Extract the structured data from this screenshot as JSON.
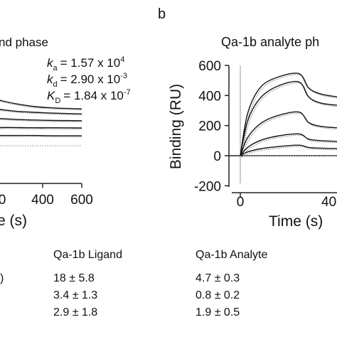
{
  "panel_b_label": "b",
  "chart_data": [
    {
      "type": "line",
      "panel": "a",
      "title": "nd phase",
      "xlabel": "e (s)",
      "ylabel": "",
      "x_ticks": [
        400,
        600
      ],
      "x_tick_partial": "0",
      "xlim": [
        0,
        600
      ],
      "rate_constants": [
        {
          "symbol": "k",
          "sub": "a",
          "value": "= 1.57 x 10",
          "exp": "4"
        },
        {
          "symbol": "k",
          "sub": "d",
          "value": "= 2.90 x 10",
          "exp": "-3"
        },
        {
          "symbol": "K",
          "sub": "D",
          "value": "= 1.84 x 10",
          "exp": "-7"
        }
      ],
      "series": [
        {
          "values": [
            [
              -20,
              200
            ],
            [
              100,
              185
            ],
            [
              250,
              172
            ],
            [
              400,
              166
            ],
            [
              600,
              162
            ]
          ]
        },
        {
          "values": [
            [
              -20,
              160
            ],
            [
              100,
              152
            ],
            [
              250,
              147
            ],
            [
              400,
              143
            ],
            [
              600,
              140
            ]
          ]
        },
        {
          "values": [
            [
              -20,
              120
            ],
            [
              100,
              116
            ],
            [
              250,
              113
            ],
            [
              400,
              111
            ],
            [
              600,
              110
            ]
          ]
        },
        {
          "values": [
            [
              -20,
              80
            ],
            [
              100,
              80
            ],
            [
              250,
              79
            ],
            [
              400,
              79
            ],
            [
              600,
              78
            ]
          ]
        },
        {
          "values": [
            [
              -20,
              45
            ],
            [
              100,
              45
            ],
            [
              250,
              45
            ],
            [
              400,
              44
            ],
            [
              600,
              44
            ]
          ]
        }
      ],
      "baseline": 0
    },
    {
      "type": "line",
      "panel": "b",
      "title": "Qa-1b analyte ph",
      "xlabel": "Time (s)",
      "ylabel": "Binding (RU)",
      "y_ticks": [
        600,
        400,
        200,
        0,
        -200
      ],
      "x_ticks": [
        "0",
        "40"
      ],
      "ylim": [
        -200,
        600
      ],
      "xlim": [
        -30,
        430
      ],
      "series": [
        {
          "values": [
            [
              0,
              0
            ],
            [
              30,
              280
            ],
            [
              80,
              450
            ],
            [
              150,
              520
            ],
            [
              240,
              545
            ],
            [
              280,
              450
            ],
            [
              330,
              410
            ],
            [
              400,
              390
            ],
            [
              430,
              385
            ]
          ]
        },
        {
          "values": [
            [
              0,
              0
            ],
            [
              30,
              230
            ],
            [
              80,
              380
            ],
            [
              150,
              460
            ],
            [
              240,
              490
            ],
            [
              280,
              390
            ],
            [
              330,
              350
            ],
            [
              400,
              335
            ],
            [
              430,
              330
            ]
          ]
        },
        {
          "values": [
            [
              0,
              0
            ],
            [
              30,
              120
            ],
            [
              80,
              210
            ],
            [
              150,
              265
            ],
            [
              240,
              290
            ],
            [
              280,
              220
            ],
            [
              330,
              195
            ],
            [
              400,
              185
            ],
            [
              430,
              182
            ]
          ]
        },
        {
          "values": [
            [
              0,
              0
            ],
            [
              30,
              55
            ],
            [
              80,
              100
            ],
            [
              150,
              130
            ],
            [
              240,
              145
            ],
            [
              280,
              110
            ],
            [
              330,
              100
            ],
            [
              400,
              95
            ],
            [
              430,
              93
            ]
          ]
        },
        {
          "values": [
            [
              0,
              0
            ],
            [
              30,
              25
            ],
            [
              80,
              45
            ],
            [
              150,
              60
            ],
            [
              240,
              70
            ],
            [
              280,
              55
            ],
            [
              330,
              50
            ],
            [
              400,
              48
            ],
            [
              430,
              47
            ]
          ]
        }
      ],
      "baseline": 0
    }
  ],
  "table": {
    "headers": [
      "Qa-1b Ligand",
      "Qa-1b Analyte"
    ],
    "row_stub": ")",
    "rows": [
      [
        "18  ± 5.8",
        "4.7 ± 0.3"
      ],
      [
        "3.4 ± 1.3",
        "0.8  ± 0.2"
      ],
      [
        "2.9 ± 1.8",
        "1.9 ± 0.5"
      ]
    ]
  }
}
